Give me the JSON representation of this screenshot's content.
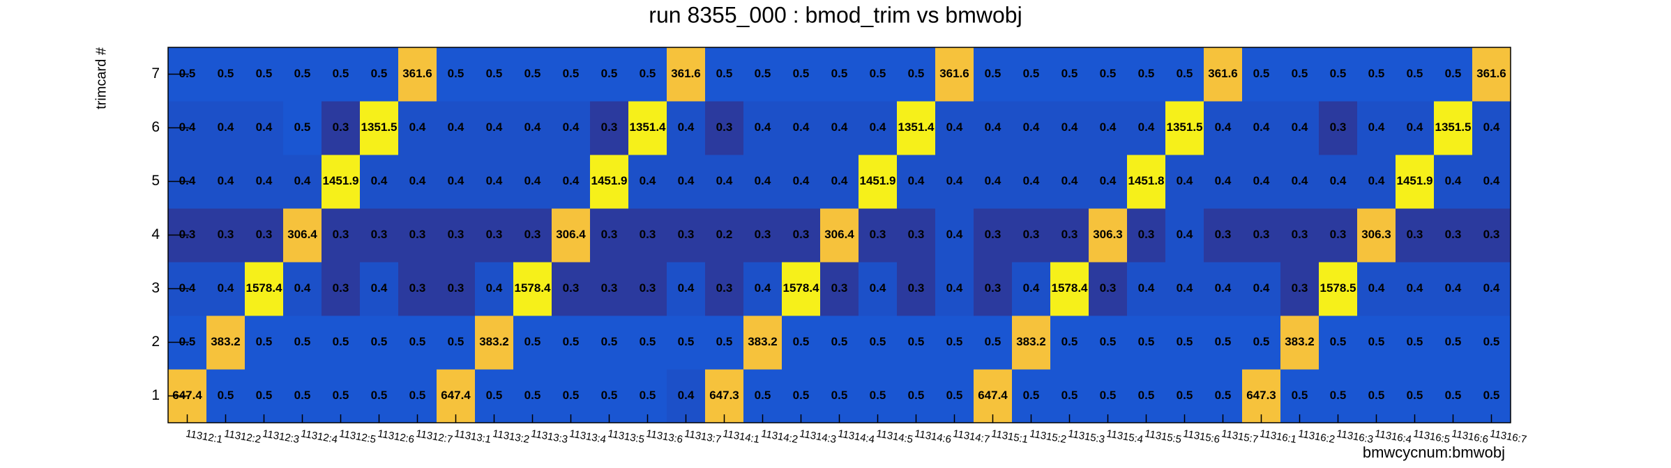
{
  "chart_data": {
    "type": "heatmap",
    "title": "run 8355_000 : bmod_trim vs bmwobj",
    "x_label": "bmwcycnum:bmwobj",
    "y_label": "trimcard #",
    "categories": [
      "11312:1",
      "11312:2",
      "11312:3",
      "11312:4",
      "11312:5",
      "11312:6",
      "11312:7",
      "11313:1",
      "11313:2",
      "11313:3",
      "11313:4",
      "11313:5",
      "11313:6",
      "11313:7",
      "11314:1",
      "11314:2",
      "11314:3",
      "11314:4",
      "11314:5",
      "11314:6",
      "11314:7",
      "11315:1",
      "11315:2",
      "11315:3",
      "11315:4",
      "11315:5",
      "11315:6",
      "11315:7",
      "11316:1",
      "11316:2",
      "11316:3",
      "11316:4",
      "11316:5",
      "11316:6",
      "11316:7"
    ],
    "y_categories": [
      "1",
      "2",
      "3",
      "4",
      "5",
      "6",
      "7"
    ],
    "z": [
      [
        647.4,
        0.5,
        0.5,
        0.5,
        0.5,
        0.5,
        0.5,
        647.4,
        0.5,
        0.5,
        0.5,
        0.5,
        0.5,
        0.4,
        647.3,
        0.5,
        0.5,
        0.5,
        0.5,
        0.5,
        0.5,
        647.4,
        0.5,
        0.5,
        0.5,
        0.5,
        0.5,
        0.5,
        647.3,
        0.5,
        0.5,
        0.5,
        0.5,
        0.5,
        0.5
      ],
      [
        0.5,
        383.2,
        0.5,
        0.5,
        0.5,
        0.5,
        0.5,
        0.5,
        383.2,
        0.5,
        0.5,
        0.5,
        0.5,
        0.5,
        0.5,
        383.2,
        0.5,
        0.5,
        0.5,
        0.5,
        0.5,
        0.5,
        383.2,
        0.5,
        0.5,
        0.5,
        0.5,
        0.5,
        0.5,
        383.2,
        0.5,
        0.5,
        0.5,
        0.5,
        0.5
      ],
      [
        0.4,
        0.4,
        1578.4,
        0.4,
        0.3,
        0.4,
        0.3,
        0.3,
        0.4,
        1578.4,
        0.3,
        0.3,
        0.3,
        0.4,
        0.3,
        0.4,
        1578.4,
        0.3,
        0.4,
        0.3,
        0.4,
        0.3,
        0.4,
        1578.4,
        0.3,
        0.4,
        0.4,
        0.4,
        0.4,
        0.3,
        1578.5,
        0.4,
        0.4,
        0.4,
        0.4
      ],
      [
        0.3,
        0.3,
        0.3,
        306.4,
        0.3,
        0.3,
        0.3,
        0.3,
        0.3,
        0.3,
        306.4,
        0.3,
        0.3,
        0.3,
        0.2,
        0.3,
        0.3,
        306.4,
        0.3,
        0.3,
        0.4,
        0.3,
        0.3,
        0.3,
        306.3,
        0.3,
        0.4,
        0.3,
        0.3,
        0.3,
        0.3,
        306.3,
        0.3,
        0.3,
        0.3
      ],
      [
        0.4,
        0.4,
        0.4,
        0.4,
        1451.9,
        0.4,
        0.4,
        0.4,
        0.4,
        0.4,
        0.4,
        1451.9,
        0.4,
        0.4,
        0.4,
        0.4,
        0.4,
        0.4,
        1451.9,
        0.4,
        0.4,
        0.4,
        0.4,
        0.4,
        0.4,
        1451.8,
        0.4,
        0.4,
        0.4,
        0.4,
        0.4,
        0.4,
        1451.9,
        0.4,
        0.4
      ],
      [
        0.4,
        0.4,
        0.4,
        0.5,
        0.3,
        1351.5,
        0.4,
        0.4,
        0.4,
        0.4,
        0.4,
        0.3,
        1351.4,
        0.4,
        0.3,
        0.4,
        0.4,
        0.4,
        0.4,
        1351.4,
        0.4,
        0.4,
        0.4,
        0.4,
        0.4,
        0.4,
        1351.5,
        0.4,
        0.4,
        0.4,
        0.3,
        0.4,
        0.4,
        1351.5,
        0.4
      ],
      [
        0.5,
        0.5,
        0.5,
        0.5,
        0.5,
        0.5,
        361.6,
        0.5,
        0.5,
        0.5,
        0.5,
        0.5,
        0.5,
        361.6,
        0.5,
        0.5,
        0.5,
        0.5,
        0.5,
        0.5,
        361.6,
        0.5,
        0.5,
        0.5,
        0.5,
        0.5,
        0.5,
        361.6,
        0.5,
        0.5,
        0.5,
        0.5,
        0.5,
        0.5,
        361.6
      ]
    ]
  }
}
